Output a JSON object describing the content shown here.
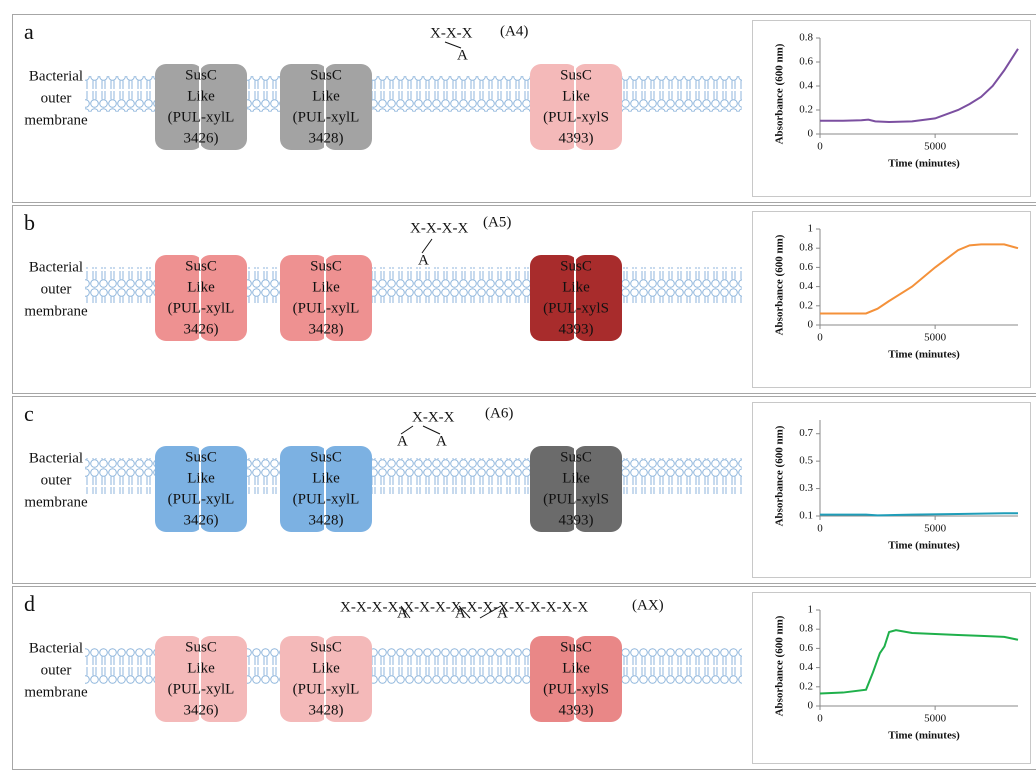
{
  "panels": [
    {
      "letter": "a",
      "membrane": [
        "Bacterial",
        "outer",
        "membrane"
      ],
      "chain": "X-X-X",
      "name": "(A4)",
      "branches": [
        "A"
      ],
      "transporters": [
        {
          "lines": [
            "SusC",
            "Like",
            "(PUL-xylL",
            "3426)"
          ],
          "color": "#a3a3a3"
        },
        {
          "lines": [
            "SusC",
            "Like",
            "(PUL-xylL",
            "3428)"
          ],
          "color": "#a3a3a3"
        },
        {
          "lines": [
            "SusC",
            "Like",
            "(PUL-xylS",
            "4393)"
          ],
          "color": "#f4b9b9"
        }
      ]
    },
    {
      "letter": "b",
      "membrane": [
        "Bacterial",
        "outer",
        "membrane"
      ],
      "chain": "X-X-X-X",
      "name": "(A5)",
      "branches": [
        "A"
      ],
      "transporters": [
        {
          "lines": [
            "SusC",
            "Like",
            "(PUL-xylL",
            "3426)"
          ],
          "color": "#ee9191"
        },
        {
          "lines": [
            "SusC",
            "Like",
            "(PUL-xylL",
            "3428)"
          ],
          "color": "#ee9191"
        },
        {
          "lines": [
            "SusC",
            "Like",
            "(PUL-xylS",
            "4393)"
          ],
          "color": "#a82c2c"
        }
      ]
    },
    {
      "letter": "c",
      "membrane": [
        "Bacterial",
        "outer",
        "membrane"
      ],
      "chain": "X-X-X",
      "name": "(A6)",
      "branches": [
        "A",
        "A"
      ],
      "transporters": [
        {
          "lines": [
            "SusC",
            "Like",
            "(PUL-xylL",
            "3426)"
          ],
          "color": "#7cb1e2"
        },
        {
          "lines": [
            "SusC",
            "Like",
            "(PUL-xylL",
            "3428)"
          ],
          "color": "#7cb1e2"
        },
        {
          "lines": [
            "SusC",
            "Like",
            "(PUL-xylS",
            "4393)"
          ],
          "color": "#6b6b6b"
        }
      ]
    },
    {
      "letter": "d",
      "membrane": [
        "Bacterial",
        "outer",
        "membrane"
      ],
      "chain": "X-X-X-X-X-X-X-X-X-X-X-X-X-X-X-X",
      "name": "(AX)",
      "branches": [
        "A",
        "A",
        "A"
      ],
      "transporters": [
        {
          "lines": [
            "SusC",
            "Like",
            "(PUL-xylL",
            "3426)"
          ],
          "color": "#f4b9b9"
        },
        {
          "lines": [
            "SusC",
            "Like",
            "(PUL-xylL",
            "3428)"
          ],
          "color": "#f4b9b9"
        },
        {
          "lines": [
            "SusC",
            "Like",
            "(PUL-xylS",
            "4393)"
          ],
          "color": "#e98787"
        }
      ]
    }
  ],
  "chart_data": [
    {
      "type": "line",
      "x_label": "Time (minutes)",
      "y_label": "Absorbance (600 nm)",
      "x": [
        0,
        1000,
        1800,
        2100,
        2400,
        3000,
        4000,
        5000,
        6000,
        6500,
        7000,
        7500,
        8000,
        8600
      ],
      "series": [
        {
          "color": "#7b4fa0",
          "values": [
            0.11,
            0.11,
            0.115,
            0.12,
            0.105,
            0.1,
            0.105,
            0.13,
            0.2,
            0.25,
            0.31,
            0.4,
            0.53,
            0.71
          ]
        }
      ],
      "xlim": [
        0,
        8600
      ],
      "ylim": [
        0,
        0.8
      ],
      "xticks": [
        0,
        5000
      ],
      "yticks": [
        0,
        0.2,
        0.4,
        0.6,
        0.8
      ]
    },
    {
      "type": "line",
      "x_label": "Time (minutes)",
      "y_label": "Absorbance (600 nm)",
      "x": [
        0,
        1000,
        2000,
        2500,
        3000,
        4000,
        5000,
        6000,
        6500,
        7000,
        8000,
        8600
      ],
      "series": [
        {
          "color": "#f4913a",
          "values": [
            0.12,
            0.12,
            0.12,
            0.17,
            0.25,
            0.4,
            0.6,
            0.78,
            0.83,
            0.84,
            0.84,
            0.8
          ]
        }
      ],
      "xlim": [
        0,
        8600
      ],
      "ylim": [
        0,
        1
      ],
      "xticks": [
        0,
        5000
      ],
      "yticks": [
        0,
        0.2,
        0.4,
        0.6,
        0.8,
        1
      ]
    },
    {
      "type": "line",
      "x_label": "Time (minutes)",
      "y_label": "Absorbance (600 nm)",
      "x": [
        0,
        2000,
        2500,
        4000,
        6000,
        8000,
        8600
      ],
      "series": [
        {
          "color": "#1f9db8",
          "values": [
            0.11,
            0.11,
            0.105,
            0.11,
            0.115,
            0.12,
            0.12
          ]
        }
      ],
      "xlim": [
        0,
        8600
      ],
      "ylim": [
        0.1,
        0.8
      ],
      "xticks": [
        0,
        5000
      ],
      "yticks": [
        0.1,
        0.3,
        0.5,
        0.7
      ]
    },
    {
      "type": "line",
      "x_label": "Time (minutes)",
      "y_label": "Absorbance (600 nm)",
      "x": [
        0,
        1000,
        2000,
        2300,
        2600,
        2800,
        3000,
        3300,
        4000,
        5000,
        6000,
        7000,
        8000,
        8600
      ],
      "series": [
        {
          "color": "#1fb04b",
          "values": [
            0.13,
            0.14,
            0.17,
            0.35,
            0.55,
            0.62,
            0.77,
            0.79,
            0.76,
            0.75,
            0.74,
            0.73,
            0.72,
            0.69
          ]
        }
      ],
      "xlim": [
        0,
        8600
      ],
      "ylim": [
        0,
        1
      ],
      "xticks": [
        0,
        5000
      ],
      "yticks": [
        0,
        0.2,
        0.4,
        0.6,
        0.8,
        1
      ]
    }
  ]
}
